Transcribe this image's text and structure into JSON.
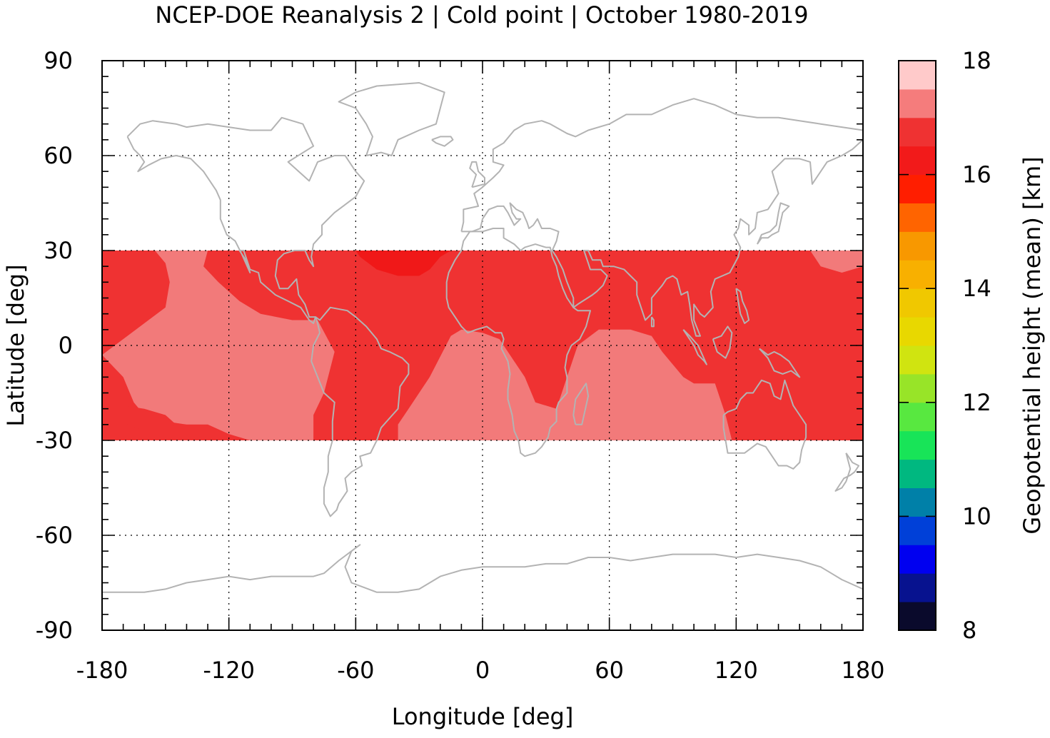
{
  "title": "NCEP-DOE Reanalysis 2 | Cold point | October 1980-2019",
  "map": {
    "xlabel": "Longitude [deg]",
    "ylabel": "Latitude [deg]",
    "xlim": [
      -180,
      180
    ],
    "ylim": [
      -90,
      90
    ],
    "xticks": [
      "-180",
      "-120",
      "-60",
      "0",
      "60",
      "120",
      "180"
    ],
    "yticks": [
      "90",
      "60",
      "30",
      "0",
      "-30",
      "-60",
      "-90"
    ],
    "grid": "dotted",
    "data_band_lat": [
      -30,
      30
    ],
    "colors": {
      "low": "#f27a7a",
      "mid": "#ef3232",
      "high": "#f01818",
      "coast": "#b3b3b3"
    },
    "colorbar": {
      "label": "Geopotential height (mean) [km]",
      "range": [
        8,
        18
      ],
      "ticks": [
        "18",
        "16",
        "14",
        "12",
        "10",
        "8"
      ],
      "colors": [
        "#0a0a2c",
        "#07128f",
        "#0000f0",
        "#0040d8",
        "#0080a8",
        "#00b880",
        "#18e458",
        "#58e840",
        "#98e428",
        "#d0e410",
        "#e8d800",
        "#f0c800",
        "#f8b000",
        "#f89800",
        "#ff6400",
        "#ff1e00",
        "#f21a1a",
        "#ef3232",
        "#f57c7c",
        "#ffcaca"
      ]
    }
  }
}
